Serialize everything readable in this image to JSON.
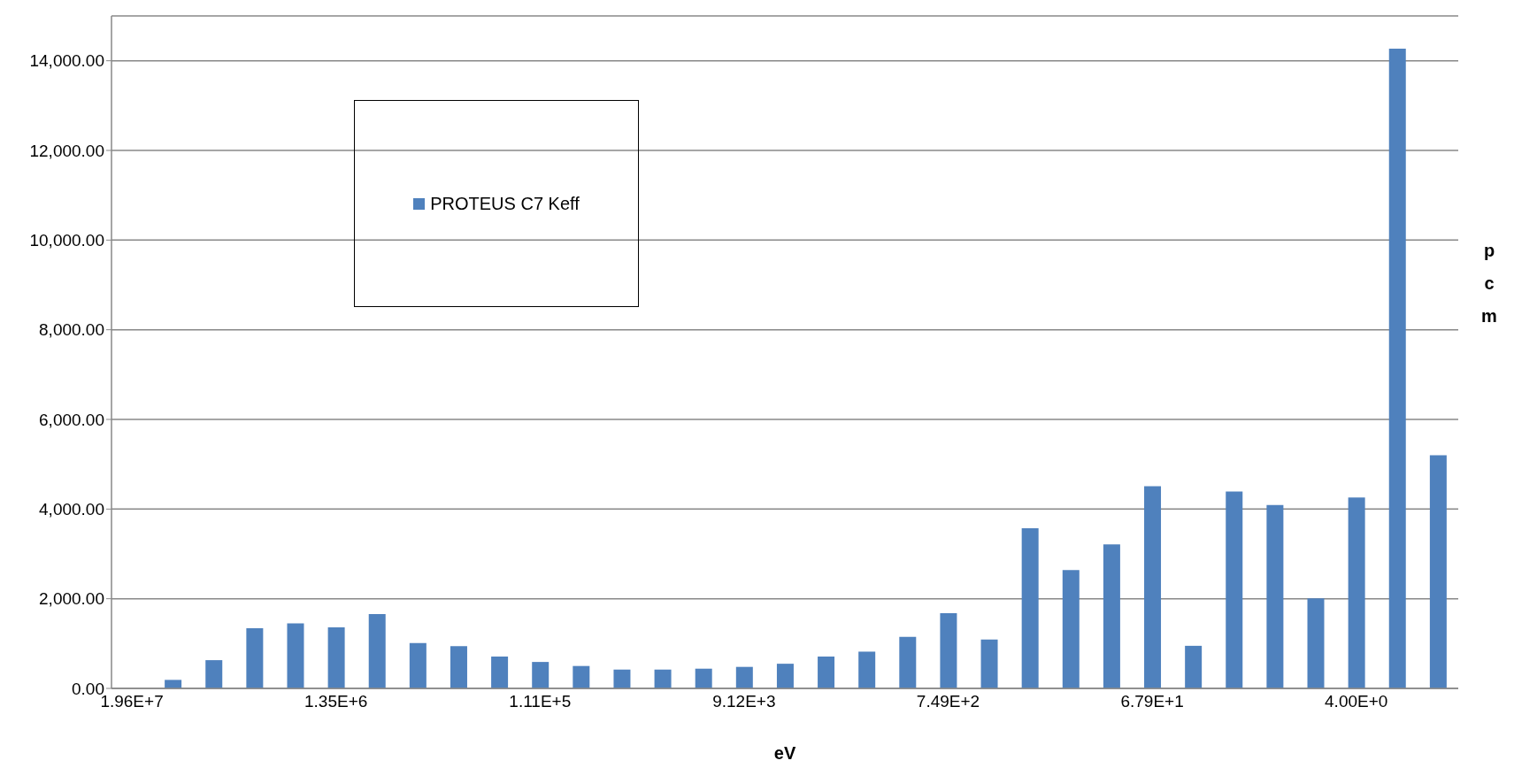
{
  "chart_data": {
    "type": "bar",
    "xlabel": "eV",
    "ylabel": "pcm",
    "categories": [
      "1.96E+7",
      null,
      null,
      null,
      null,
      "1.35E+6",
      null,
      null,
      null,
      null,
      "1.11E+5",
      null,
      null,
      null,
      null,
      "9.12E+3",
      null,
      null,
      null,
      null,
      "7.49E+2",
      null,
      null,
      null,
      null,
      "6.79E+1",
      null,
      null,
      null,
      null,
      "4.00E+0",
      null,
      null
    ],
    "series": [
      {
        "name": "PROTEUS C7 Keff",
        "color": "#4f81bd",
        "values": [
          null,
          190,
          630,
          1340,
          1450,
          1360,
          1660,
          1010,
          940,
          710,
          590,
          500,
          420,
          420,
          440,
          480,
          550,
          710,
          820,
          1150,
          1680,
          1090,
          3570,
          2640,
          3210,
          4510,
          950,
          4390,
          4090,
          2010,
          4260,
          14270,
          5200
        ]
      }
    ],
    "ylim": [
      0,
      15000
    ],
    "yticks": [
      {
        "value": 0,
        "label": "0.00"
      },
      {
        "value": 2000,
        "label": "2,000.00"
      },
      {
        "value": 4000,
        "label": "4,000.00"
      },
      {
        "value": 6000,
        "label": "6,000.00"
      },
      {
        "value": 8000,
        "label": "8,000.00"
      },
      {
        "value": 10000,
        "label": "10,000.00"
      },
      {
        "value": 12000,
        "label": "12,000.00"
      },
      {
        "value": 14000,
        "label": "14,000.00"
      }
    ],
    "grid": "y",
    "legend": "top left"
  }
}
